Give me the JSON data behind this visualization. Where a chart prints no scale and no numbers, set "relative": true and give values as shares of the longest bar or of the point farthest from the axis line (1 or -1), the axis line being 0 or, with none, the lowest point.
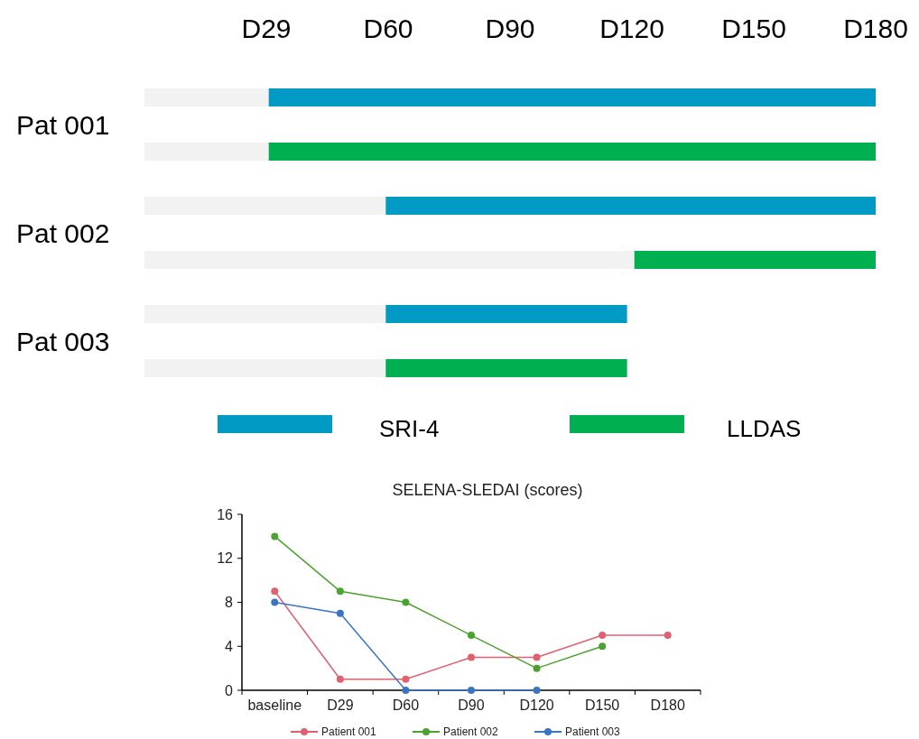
{
  "chart_data": [
    {
      "type": "bar",
      "orientation": "horizontal",
      "stacked": true,
      "relative": true,
      "categories": [
        "Pat 001",
        null,
        "Pat 002",
        null,
        "Pat 003",
        null
      ],
      "annotations": [
        "D29",
        "D60",
        "D90",
        "D120",
        "D150",
        "D180"
      ],
      "legend": "bottom",
      "series": [
        {
          "color": "#f2f2f2",
          "values": [
            0.17,
            0.17,
            0.33,
            0.67,
            0.33,
            0.33
          ]
        },
        {
          "name": "SRI-4",
          "color": "#009ac4",
          "values": [
            0.83,
            null,
            0.67,
            null,
            0.33,
            null
          ]
        },
        {
          "name": "LLDAS",
          "color": "#00b050",
          "values": [
            null,
            0.83,
            null,
            0.33,
            null,
            0.33
          ]
        }
      ]
    },
    {
      "type": "line",
      "title": "SELENA-SLEDAI (scores)",
      "categories": [
        "baseline",
        "D29",
        "D60",
        "D90",
        "D120",
        "D150",
        "D180"
      ],
      "ylim": [
        0,
        16
      ],
      "yticks": [
        0,
        4,
        8,
        12,
        16
      ],
      "marker": "circle",
      "legend": "bottom",
      "series": [
        {
          "name": "Patient 001",
          "color": "#e06070",
          "values": [
            9,
            1,
            1,
            3,
            3,
            5,
            5
          ]
        },
        {
          "name": "Patient 002",
          "color": "#4ca22e",
          "values": [
            14,
            9,
            8,
            5,
            2,
            4,
            null
          ]
        },
        {
          "name": "Patient 003",
          "color": "#3a74c4",
          "values": [
            8,
            7,
            0,
            0,
            0,
            null,
            null
          ]
        }
      ]
    }
  ]
}
